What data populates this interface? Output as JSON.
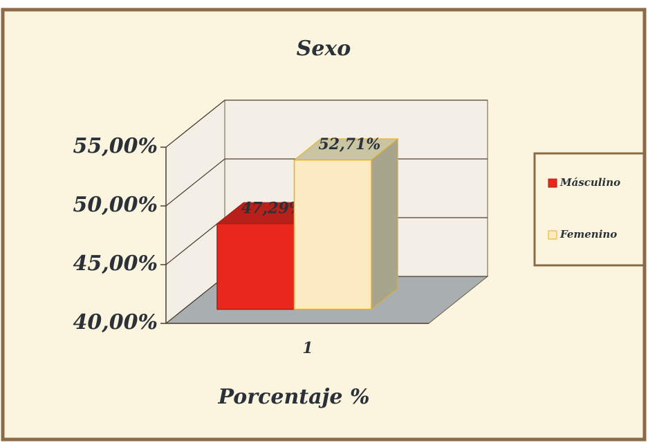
{
  "chart_data": {
    "type": "bar3d",
    "title": "Sexo",
    "x_label": "Porcentaje %",
    "categories": [
      "1"
    ],
    "series": [
      {
        "name": "Másculino",
        "color": "#e8281c",
        "values": [
          47.29
        ],
        "value_labels": [
          "47,29%"
        ]
      },
      {
        "name": "Femenino",
        "color": "#fdebc4",
        "values": [
          52.71
        ],
        "value_labels": [
          "52,71%"
        ]
      }
    ],
    "ylim": [
      40,
      55
    ],
    "yticks": [
      {
        "value": 40,
        "label": "40,00%"
      },
      {
        "value": 45,
        "label": "45,00%"
      },
      {
        "value": 50,
        "label": "50,00%"
      },
      {
        "value": 55,
        "label": "55,00%"
      }
    ],
    "grid": true,
    "legend": "right"
  }
}
